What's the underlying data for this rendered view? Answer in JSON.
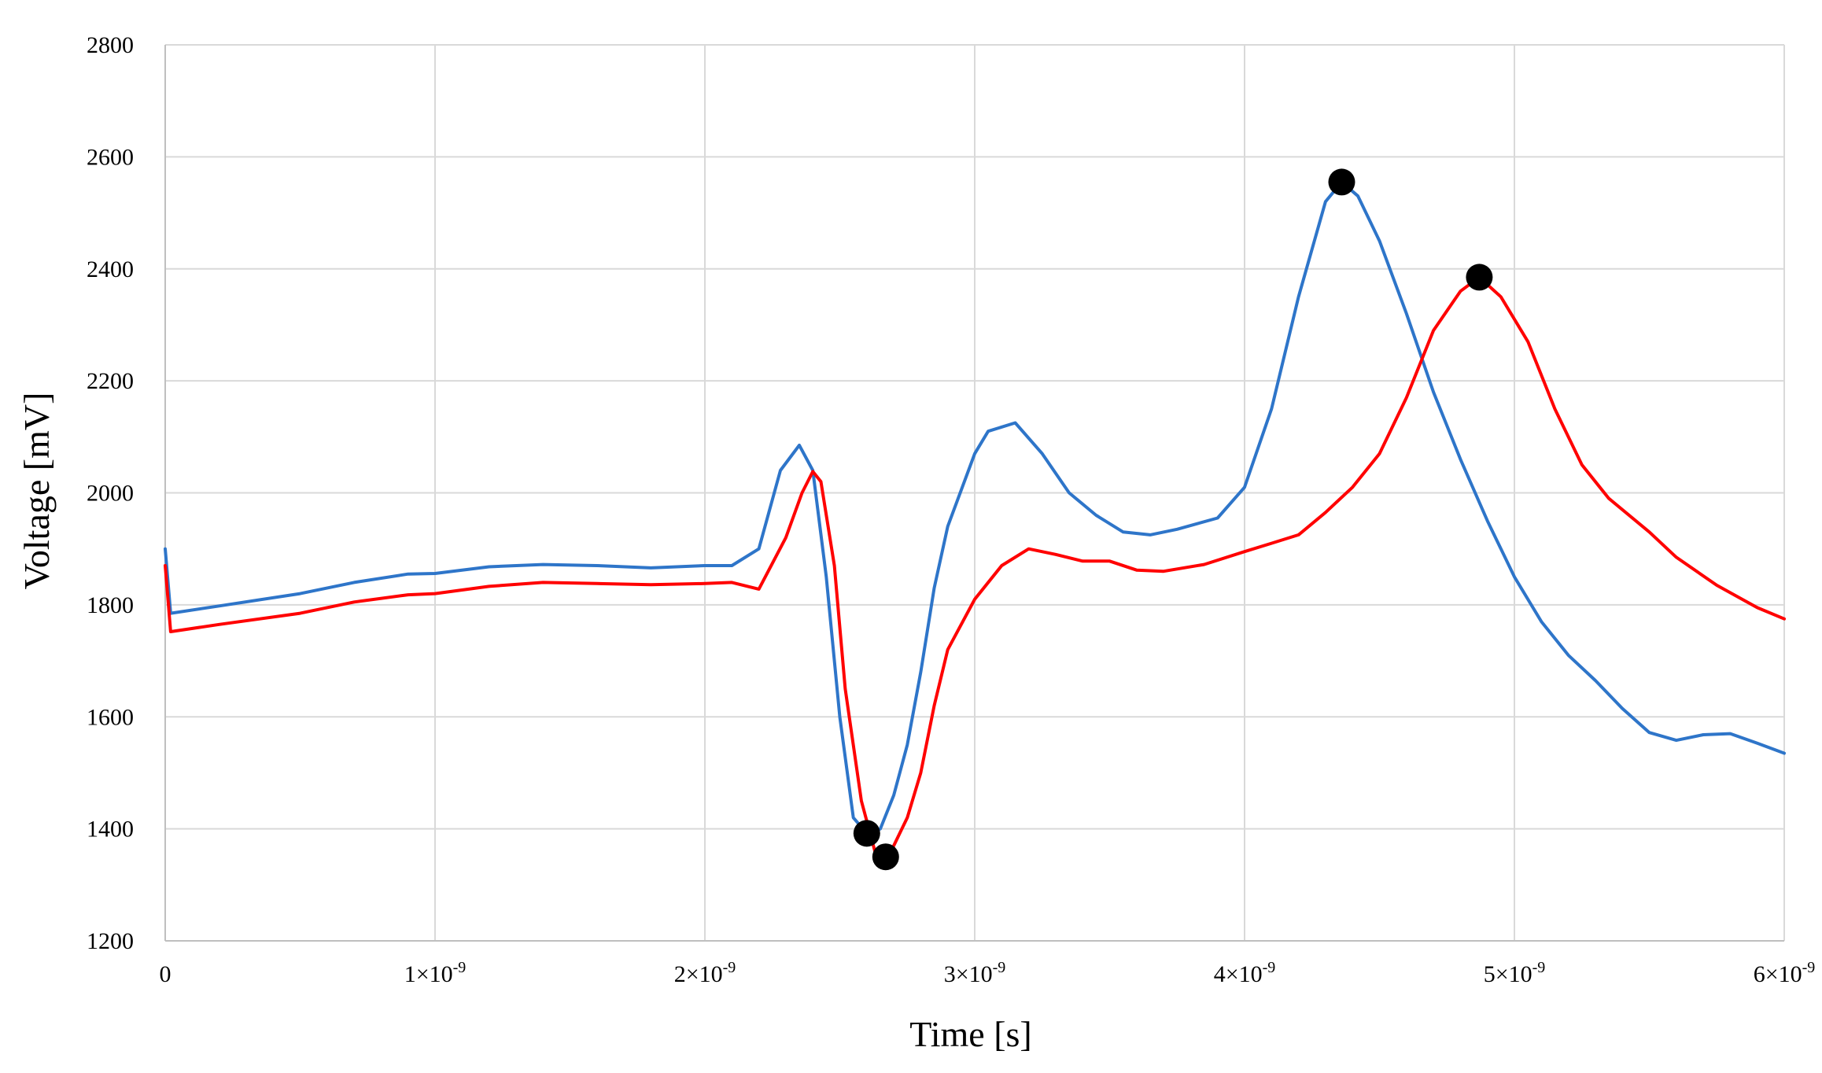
{
  "chart_data": {
    "type": "line",
    "title": "",
    "xlabel": "Time [s]",
    "ylabel": "Voltage [mV]",
    "xlim": [
      0,
      6e-09
    ],
    "ylim": [
      1200,
      2800
    ],
    "grid": true,
    "legend": "none",
    "x_ticks": [
      {
        "value": 0,
        "label": "0"
      },
      {
        "value": 1e-09,
        "label": "1×10",
        "exp": "-9"
      },
      {
        "value": 2e-09,
        "label": "2×10",
        "exp": "-9"
      },
      {
        "value": 3e-09,
        "label": "3×10",
        "exp": "-9"
      },
      {
        "value": 4e-09,
        "label": "4×10",
        "exp": "-9"
      },
      {
        "value": 5e-09,
        "label": "5×10",
        "exp": "-9"
      },
      {
        "value": 6e-09,
        "label": "6×10",
        "exp": "-9"
      }
    ],
    "y_ticks": [
      {
        "value": 1200,
        "label": "1200"
      },
      {
        "value": 1400,
        "label": "1400"
      },
      {
        "value": 1600,
        "label": "1600"
      },
      {
        "value": 1800,
        "label": "1800"
      },
      {
        "value": 2000,
        "label": "2000"
      },
      {
        "value": 2200,
        "label": "2200"
      },
      {
        "value": 2400,
        "label": "2400"
      },
      {
        "value": 2600,
        "label": "2600"
      },
      {
        "value": 2800,
        "label": "2800"
      }
    ],
    "series": [
      {
        "color": "#2e75c9",
        "points": [
          [
            0,
            1900
          ],
          [
            2e-11,
            1785
          ],
          [
            2e-10,
            1798
          ],
          [
            5e-10,
            1820
          ],
          [
            7e-10,
            1840
          ],
          [
            9e-10,
            1855
          ],
          [
            1e-09,
            1856
          ],
          [
            1.2e-09,
            1868
          ],
          [
            1.4e-09,
            1872
          ],
          [
            1.6e-09,
            1870
          ],
          [
            1.8e-09,
            1866
          ],
          [
            2e-09,
            1870
          ],
          [
            2.1e-09,
            1870
          ],
          [
            2.2e-09,
            1900
          ],
          [
            2.28e-09,
            2040
          ],
          [
            2.35e-09,
            2085
          ],
          [
            2.4e-09,
            2040
          ],
          [
            2.45e-09,
            1850
          ],
          [
            2.5e-09,
            1600
          ],
          [
            2.55e-09,
            1420
          ],
          [
            2.6e-09,
            1392
          ],
          [
            2.65e-09,
            1400
          ],
          [
            2.7e-09,
            1460
          ],
          [
            2.75e-09,
            1550
          ],
          [
            2.8e-09,
            1680
          ],
          [
            2.85e-09,
            1830
          ],
          [
            2.9e-09,
            1940
          ],
          [
            3e-09,
            2070
          ],
          [
            3.05e-09,
            2110
          ],
          [
            3.15e-09,
            2125
          ],
          [
            3.25e-09,
            2070
          ],
          [
            3.35e-09,
            2000
          ],
          [
            3.45e-09,
            1960
          ],
          [
            3.55e-09,
            1930
          ],
          [
            3.65e-09,
            1925
          ],
          [
            3.75e-09,
            1935
          ],
          [
            3.9e-09,
            1955
          ],
          [
            4e-09,
            2010
          ],
          [
            4.1e-09,
            2150
          ],
          [
            4.2e-09,
            2350
          ],
          [
            4.3e-09,
            2520
          ],
          [
            4.36e-09,
            2555
          ],
          [
            4.42e-09,
            2530
          ],
          [
            4.5e-09,
            2450
          ],
          [
            4.6e-09,
            2320
          ],
          [
            4.7e-09,
            2180
          ],
          [
            4.8e-09,
            2060
          ],
          [
            4.9e-09,
            1950
          ],
          [
            5e-09,
            1850
          ],
          [
            5.1e-09,
            1770
          ],
          [
            5.2e-09,
            1710
          ],
          [
            5.3e-09,
            1665
          ],
          [
            5.4e-09,
            1615
          ],
          [
            5.5e-09,
            1572
          ],
          [
            5.6e-09,
            1558
          ],
          [
            5.7e-09,
            1568
          ],
          [
            5.8e-09,
            1570
          ],
          [
            5.9e-09,
            1553
          ],
          [
            6e-09,
            1535
          ]
        ]
      },
      {
        "color": "#ff0000",
        "points": [
          [
            0,
            1870
          ],
          [
            2e-11,
            1752
          ],
          [
            2e-10,
            1765
          ],
          [
            5e-10,
            1785
          ],
          [
            7e-10,
            1805
          ],
          [
            9e-10,
            1818
          ],
          [
            1e-09,
            1820
          ],
          [
            1.2e-09,
            1833
          ],
          [
            1.4e-09,
            1840
          ],
          [
            1.6e-09,
            1838
          ],
          [
            1.8e-09,
            1836
          ],
          [
            2e-09,
            1838
          ],
          [
            2.1e-09,
            1840
          ],
          [
            2.2e-09,
            1828
          ],
          [
            2.3e-09,
            1920
          ],
          [
            2.36e-09,
            2000
          ],
          [
            2.4e-09,
            2038
          ],
          [
            2.43e-09,
            2020
          ],
          [
            2.48e-09,
            1870
          ],
          [
            2.52e-09,
            1650
          ],
          [
            2.58e-09,
            1450
          ],
          [
            2.63e-09,
            1360
          ],
          [
            2.68e-09,
            1350
          ],
          [
            2.75e-09,
            1420
          ],
          [
            2.8e-09,
            1500
          ],
          [
            2.85e-09,
            1620
          ],
          [
            2.9e-09,
            1720
          ],
          [
            3e-09,
            1810
          ],
          [
            3.1e-09,
            1870
          ],
          [
            3.2e-09,
            1900
          ],
          [
            3.3e-09,
            1890
          ],
          [
            3.4e-09,
            1878
          ],
          [
            3.5e-09,
            1878
          ],
          [
            3.6e-09,
            1862
          ],
          [
            3.7e-09,
            1860
          ],
          [
            3.85e-09,
            1872
          ],
          [
            4e-09,
            1895
          ],
          [
            4.1e-09,
            1910
          ],
          [
            4.2e-09,
            1925
          ],
          [
            4.3e-09,
            1965
          ],
          [
            4.4e-09,
            2010
          ],
          [
            4.5e-09,
            2070
          ],
          [
            4.6e-09,
            2170
          ],
          [
            4.7e-09,
            2290
          ],
          [
            4.8e-09,
            2360
          ],
          [
            4.87e-09,
            2385
          ],
          [
            4.95e-09,
            2350
          ],
          [
            5.05e-09,
            2270
          ],
          [
            5.15e-09,
            2150
          ],
          [
            5.25e-09,
            2050
          ],
          [
            5.35e-09,
            1990
          ],
          [
            5.5e-09,
            1930
          ],
          [
            5.6e-09,
            1885
          ],
          [
            5.75e-09,
            1835
          ],
          [
            5.9e-09,
            1795
          ],
          [
            6e-09,
            1775
          ]
        ]
      }
    ],
    "markers": [
      {
        "x": 2.6e-09,
        "y": 1392,
        "color": "#000000"
      },
      {
        "x": 2.67e-09,
        "y": 1350,
        "color": "#000000"
      },
      {
        "x": 4.36e-09,
        "y": 2555,
        "color": "#000000"
      },
      {
        "x": 4.87e-09,
        "y": 2385,
        "color": "#000000"
      }
    ]
  }
}
